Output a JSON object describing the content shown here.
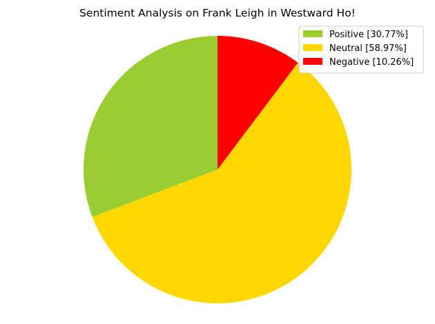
{
  "chart_data": {
    "type": "pie",
    "title": "Sentiment Analysis on Frank Leigh in Westward Ho!",
    "slices": [
      {
        "label": "Positive [30.77%]",
        "value": 30.77,
        "color": "#9acd32"
      },
      {
        "label": "Neutral [58.97%]",
        "value": 58.97,
        "color": "#ffd700"
      },
      {
        "label": "Negative [10.26%]",
        "value": 10.26,
        "color": "#ff0000"
      }
    ],
    "start_angle_deg": 90,
    "direction": "counterclockwise",
    "legend_position": "top-right"
  }
}
